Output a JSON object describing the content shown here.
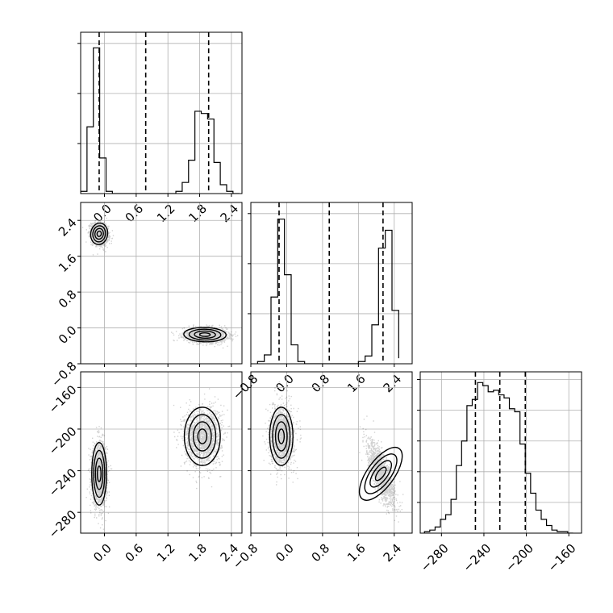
{
  "chart_data": {
    "type": "corner",
    "parameters": 3,
    "panels": [
      {
        "id": "hist-p1",
        "kind": "histogram",
        "row": 0,
        "col": 0,
        "x_range": [
          -0.45,
          2.6
        ],
        "x_ticks": [
          0.0,
          0.6,
          1.2,
          1.8,
          2.4
        ],
        "x_tick_labels": [
          "0.0",
          "0.6",
          "1.2",
          "1.8",
          "2.4"
        ],
        "y_grid": [
          0.45,
          0.9,
          1.35
        ],
        "y_max": 1.45,
        "quantiles": [
          -0.1,
          0.78,
          1.97
        ],
        "bins": {
          "edges": [
            -0.45,
            -0.33,
            -0.21,
            -0.09,
            0.03,
            0.15,
            0.27,
            0.39,
            0.51,
            0.63,
            0.75,
            0.87,
            0.99,
            1.11,
            1.23,
            1.35,
            1.47,
            1.59,
            1.71,
            1.83,
            1.95,
            2.07,
            2.19,
            2.31,
            2.43,
            2.55
          ],
          "counts": [
            0.02,
            0.6,
            1.31,
            0.32,
            0.02,
            0.0,
            0.0,
            0.0,
            0.0,
            0.0,
            0.0,
            0.0,
            0.0,
            0.0,
            0.0,
            0.02,
            0.1,
            0.3,
            0.74,
            0.72,
            0.67,
            0.28,
            0.08,
            0.02,
            0.0
          ]
        }
      },
      {
        "id": "scatter-p1-p2",
        "kind": "density",
        "row": 1,
        "col": 0,
        "x_range": [
          -0.45,
          2.6
        ],
        "y_range": [
          -0.8,
          2.8
        ],
        "x_grid": [
          0.0,
          0.6,
          1.2,
          1.8,
          2.4
        ],
        "y_ticks": [
          -0.8,
          0.0,
          0.8,
          1.6,
          2.4
        ],
        "y_tick_labels": [
          "-0.8",
          "0.0",
          "0.8",
          "1.6",
          "2.4"
        ],
        "clusters": [
          {
            "center": [
              -0.1,
              2.1
            ],
            "sigma": [
              0.08,
              0.12
            ],
            "corr": -0.2,
            "points": 1400
          },
          {
            "center": [
              1.9,
              -0.15
            ],
            "sigma": [
              0.2,
              0.08
            ],
            "corr": -0.1,
            "points": 1500
          }
        ]
      },
      {
        "id": "hist-p2",
        "kind": "histogram",
        "row": 1,
        "col": 1,
        "x_range": [
          -0.8,
          2.8
        ],
        "x_ticks": [
          -0.8,
          0.0,
          0.8,
          1.6,
          2.4
        ],
        "x_tick_labels": [
          "-0.8",
          "0.0",
          "0.8",
          "1.6",
          "2.4"
        ],
        "y_grid": [
          0.45,
          0.9,
          1.35
        ],
        "y_max": 1.45,
        "quantiles": [
          -0.17,
          0.95,
          2.15
        ],
        "bins": {
          "edges": [
            -0.65,
            -0.5,
            -0.35,
            -0.2,
            -0.05,
            0.1,
            0.25,
            0.4,
            0.55,
            0.7,
            0.85,
            1.0,
            1.15,
            1.3,
            1.45,
            1.6,
            1.75,
            1.9,
            2.05,
            2.2,
            2.35,
            2.5
          ],
          "counts": [
            0.02,
            0.08,
            0.6,
            1.3,
            0.8,
            0.17,
            0.02,
            0.0,
            0.0,
            0.0,
            0.0,
            0.0,
            0.0,
            0.0,
            0.0,
            0.02,
            0.07,
            0.35,
            1.04,
            1.2,
            0.48,
            0.05
          ]
        }
      },
      {
        "id": "scatter-p1-p3",
        "kind": "density",
        "row": 2,
        "col": 0,
        "x_range": [
          -0.45,
          2.6
        ],
        "y_range": [
          -300,
          -145
        ],
        "x_ticks": [
          0.0,
          0.6,
          1.2,
          1.8,
          2.4
        ],
        "x_tick_labels": [
          "0.0",
          "0.6",
          "1.2",
          "1.8",
          "2.4"
        ],
        "y_ticks": [
          -280,
          -240,
          -200,
          -160
        ],
        "y_tick_labels": [
          "-280",
          "-240",
          "-200",
          "-160"
        ],
        "clusters": [
          {
            "center": [
              -0.1,
              -243
            ],
            "sigma": [
              0.07,
              15
            ],
            "corr": 0.0,
            "points": 1500
          },
          {
            "center": [
              1.85,
              -207
            ],
            "sigma": [
              0.17,
              14
            ],
            "corr": 0.0,
            "points": 1600
          }
        ]
      },
      {
        "id": "scatter-p2-p3",
        "kind": "density",
        "row": 2,
        "col": 1,
        "x_range": [
          -0.8,
          2.8
        ],
        "y_range": [
          -300,
          -145
        ],
        "x_ticks": [
          -0.8,
          0.0,
          0.8,
          1.6,
          2.4
        ],
        "x_tick_labels": [
          "-0.8",
          "0.0",
          "0.8",
          "1.6",
          "2.4"
        ],
        "y_grid": [
          -280,
          -240,
          -200,
          -160
        ],
        "clusters": [
          {
            "center": [
              -0.12,
              -207
            ],
            "sigma": [
              0.13,
              14
            ],
            "corr": 0.0,
            "points": 1600
          },
          {
            "center": [
              2.1,
              -243
            ],
            "sigma": [
              0.15,
              15
            ],
            "corr": -0.75,
            "points": 1500
          }
        ]
      },
      {
        "id": "hist-p3",
        "kind": "histogram",
        "row": 2,
        "col": 2,
        "x_range": [
          -300,
          -148
        ],
        "x_ticks": [
          -280,
          -240,
          -200,
          -160
        ],
        "x_tick_labels": [
          "-280",
          "-240",
          "-200",
          "-160"
        ],
        "y_grid": [
          0.2,
          0.4,
          0.6,
          0.8,
          1.0
        ],
        "y_max": 1.05,
        "quantiles": [
          -248,
          -225,
          -201
        ],
        "bins": {
          "edges": [
            -296,
            -291,
            -286,
            -281,
            -276,
            -271,
            -266,
            -261,
            -256,
            -251,
            -246,
            -241,
            -236,
            -231,
            -226,
            -221,
            -216,
            -211,
            -206,
            -201,
            -196,
            -191,
            -186,
            -181,
            -176,
            -171,
            -166,
            -161,
            -156
          ],
          "counts": [
            0.01,
            0.02,
            0.04,
            0.09,
            0.12,
            0.22,
            0.44,
            0.6,
            0.83,
            0.87,
            0.98,
            0.96,
            0.92,
            0.93,
            0.9,
            0.88,
            0.81,
            0.79,
            0.58,
            0.39,
            0.26,
            0.15,
            0.09,
            0.05,
            0.02,
            0.01,
            0.01,
            0.0
          ]
        }
      }
    ]
  }
}
